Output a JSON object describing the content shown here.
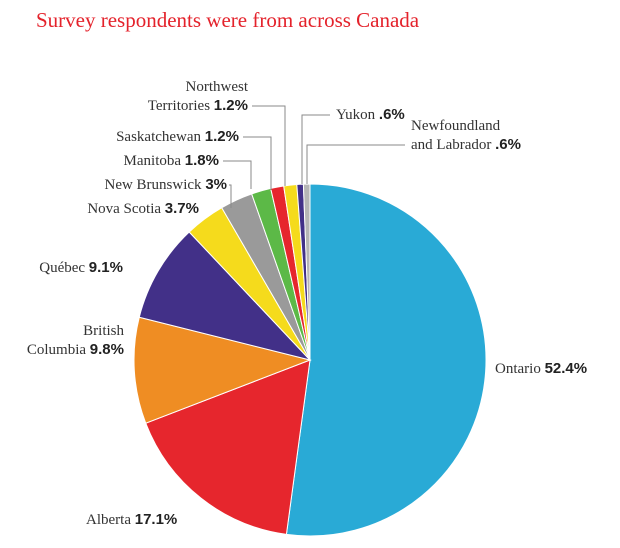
{
  "chart_data": {
    "type": "pie",
    "title": "Survey respondents were from across Canada",
    "slices": [
      {
        "label": "Ontario",
        "value": 52.4,
        "value_label": "52.4%",
        "color": "#29aad6"
      },
      {
        "label": "Alberta",
        "value": 17.1,
        "value_label": "17.1%",
        "color": "#e6262d"
      },
      {
        "label": "British Columbia",
        "label_lines": [
          "British",
          "Columbia"
        ],
        "value": 9.8,
        "value_label": "9.8%",
        "color": "#ef8d23"
      },
      {
        "label": "Québec",
        "value": 9.1,
        "value_label": "9.1%",
        "color": "#423088"
      },
      {
        "label": "Nova Scotia",
        "value": 3.7,
        "value_label": "3.7%",
        "color": "#f5db1c"
      },
      {
        "label": "New Brunswick",
        "value": 3.0,
        "value_label": "3%",
        "color": "#9a9a9a"
      },
      {
        "label": "Manitoba",
        "value": 1.8,
        "value_label": "1.8%",
        "color": "#5cb947"
      },
      {
        "label": "Saskatchewan",
        "value": 1.2,
        "value_label": "1.2%",
        "color": "#e6262d"
      },
      {
        "label": "Northwest Territories",
        "label_lines": [
          "Northwest",
          "Territories"
        ],
        "value": 1.2,
        "value_label": "1.2%",
        "color": "#f5db1c"
      },
      {
        "label": "Yukon",
        "value": 0.6,
        "value_label": ".6%",
        "color": "#423088"
      },
      {
        "label": "Newfoundland and Labrador",
        "label_lines": [
          "Newfoundland",
          "and Labrador"
        ],
        "value": 0.6,
        "value_label": ".6%",
        "color": "#b5b5b5"
      }
    ]
  }
}
